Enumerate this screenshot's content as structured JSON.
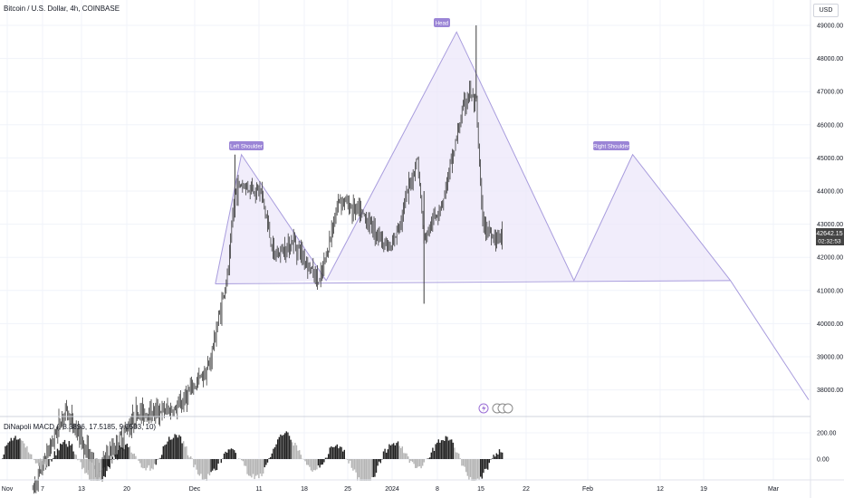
{
  "title": "Bitcoin / U.S. Dollar, 4h, COINBASE",
  "currency": "USD",
  "macd_label": "DiNapoli MACD (, 8.3896, 17.5185, 9.0503, 10)",
  "last_price": "42642.15",
  "countdown": "02:32:53",
  "pattern_labels": {
    "left_shoulder": "Left Shoulder",
    "head": "Head",
    "right_shoulder": "Right Shoulder"
  },
  "colors": {
    "candle": "#3a3a3a",
    "pattern_line": "#a89cdd",
    "pattern_fill": "#ebe6fa",
    "label_bg": "#9b85d6",
    "macd_dark": "#222222",
    "macd_light": "#b5b5b5",
    "grid": "#f0f3fa"
  },
  "chart_data": {
    "type": "candlestick",
    "symbol": "Bitcoin / U.S. Dollar",
    "interval": "4h",
    "exchange": "COINBASE",
    "y_ticks": [
      49000,
      48000,
      47000,
      46000,
      45000,
      44000,
      43000,
      42000,
      41000,
      40000,
      39000,
      38000
    ],
    "y_tick_labels": [
      "49000.00",
      "48000.00",
      "47000.00",
      "46000.00",
      "45000.00",
      "44000.00",
      "43000.00",
      "42000.00",
      "41000.00",
      "40000.00",
      "39000.00",
      "38000.00"
    ],
    "x_tick_labels": [
      "Nov",
      "7",
      "13",
      "20",
      "Dec",
      "11",
      "18",
      "25",
      "2024",
      "8",
      "15",
      "22",
      "Feb",
      "12",
      "19",
      "Mar"
    ],
    "price_path": [
      {
        "date": "2023-11-04",
        "price": 35000
      },
      {
        "date": "2023-11-09",
        "price": 37400
      },
      {
        "date": "2023-11-14",
        "price": 35500
      },
      {
        "date": "2023-11-20",
        "price": 37300
      },
      {
        "date": "2023-11-26",
        "price": 37400
      },
      {
        "date": "2023-12-01",
        "price": 38700
      },
      {
        "date": "2023-12-04",
        "price": 41600
      },
      {
        "date": "2023-12-05",
        "price": 44000
      },
      {
        "date": "2023-12-06",
        "price": 44200
      },
      {
        "date": "2023-12-09",
        "price": 44000
      },
      {
        "date": "2023-12-11",
        "price": 42000
      },
      {
        "date": "2023-12-14",
        "price": 42500
      },
      {
        "date": "2023-12-18",
        "price": 41200
      },
      {
        "date": "2023-12-21",
        "price": 43800
      },
      {
        "date": "2023-12-25",
        "price": 43200
      },
      {
        "date": "2023-12-29",
        "price": 42200
      },
      {
        "date": "2024-01-02",
        "price": 45000
      },
      {
        "date": "2024-01-03",
        "price": 42500
      },
      {
        "date": "2024-01-06",
        "price": 43800
      },
      {
        "date": "2024-01-09",
        "price": 46500
      },
      {
        "date": "2024-01-10",
        "price": 47000
      },
      {
        "date": "2024-01-11",
        "price": 46500
      },
      {
        "date": "2024-01-12",
        "price": 43000
      },
      {
        "date": "2024-01-14",
        "price": 42600
      },
      {
        "date": "2024-01-15",
        "price": 42642.15
      }
    ],
    "extremes": {
      "high": 49000,
      "low": 40600
    },
    "pattern": {
      "type": "head-and-shoulders",
      "points": [
        {
          "date": "2023-12-02",
          "price": 41200
        },
        {
          "date": "2023-12-06",
          "price": 45100
        },
        {
          "date": "2023-12-19",
          "price": 41300
        },
        {
          "date": "2024-01-08",
          "price": 48800
        },
        {
          "date": "2024-01-26",
          "price": 41300
        },
        {
          "date": "2024-02-04",
          "price": 45100
        },
        {
          "date": "2024-02-19",
          "price": 41300
        },
        {
          "date": "2024-03-02",
          "price": 37700
        }
      ],
      "neckline": [
        {
          "date": "2023-12-02",
          "price": 41200
        },
        {
          "date": "2024-02-19",
          "price": 41300
        }
      ]
    },
    "macd": {
      "y_ticks": [
        200,
        0
      ],
      "y_tick_labels": [
        "200.00",
        "0.00"
      ]
    }
  }
}
